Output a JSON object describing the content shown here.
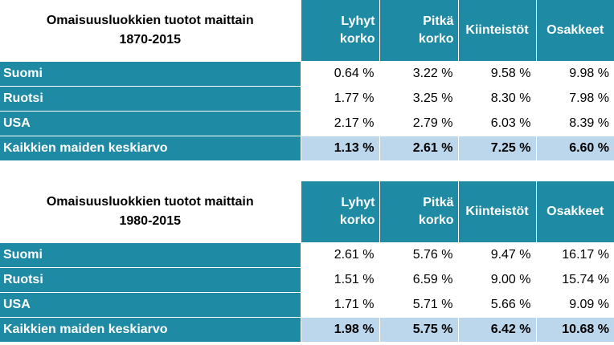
{
  "tables": [
    {
      "title_line1": "Omaisuusluokkien tuotot maittain",
      "title_line2": "1870-2015",
      "headers": [
        {
          "line1": "Lyhyt",
          "line2": "korko"
        },
        {
          "line1": "Pitkä",
          "line2": "korko"
        },
        {
          "line1": "Kiinteistöt",
          "line2": ""
        },
        {
          "line1": "Osakkeet",
          "line2": ""
        }
      ],
      "rows": [
        {
          "label": "Suomi",
          "values": [
            "0.64 %",
            "3.22 %",
            "9.58 %",
            "9.98 %"
          ]
        },
        {
          "label": "Ruotsi",
          "values": [
            "1.77 %",
            "3.25 %",
            "8.30 %",
            "7.98 %"
          ]
        },
        {
          "label": "USA",
          "values": [
            "2.17 %",
            "2.79 %",
            "6.03 %",
            "8.39 %"
          ]
        },
        {
          "label": "Kaikkien maiden keskiarvo",
          "values": [
            "1.13 %",
            "2.61 %",
            "7.25 %",
            "6.60 %"
          ]
        }
      ]
    },
    {
      "title_line1": "Omaisuusluokkien tuotot maittain",
      "title_line2": "1980-2015",
      "headers": [
        {
          "line1": "Lyhyt",
          "line2": "korko"
        },
        {
          "line1": "Pitkä",
          "line2": "korko"
        },
        {
          "line1": "Kiinteistöt",
          "line2": ""
        },
        {
          "line1": "Osakkeet",
          "line2": ""
        }
      ],
      "rows": [
        {
          "label": "Suomi",
          "values": [
            "2.61 %",
            "5.76 %",
            "9.47 %",
            "16.17 %"
          ]
        },
        {
          "label": "Ruotsi",
          "values": [
            "1.51 %",
            "6.59 %",
            "9.00 %",
            "15.74 %"
          ]
        },
        {
          "label": "USA",
          "values": [
            "1.71 %",
            "5.71 %",
            "5.66 %",
            "9.09 %"
          ]
        },
        {
          "label": "Kaikkien maiden keskiarvo",
          "values": [
            "1.98 %",
            "5.75 %",
            "6.42 %",
            "10.68 %"
          ]
        }
      ]
    }
  ]
}
